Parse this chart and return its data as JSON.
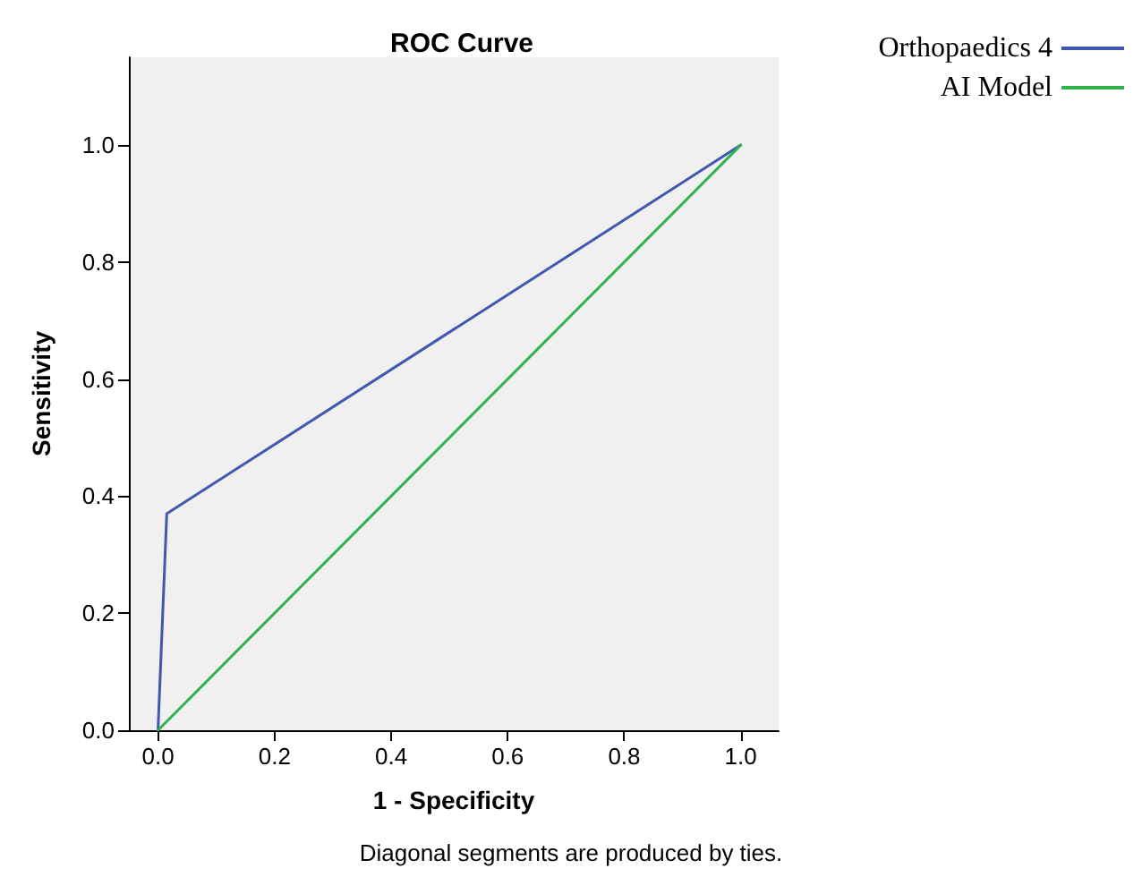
{
  "chart_data": {
    "type": "line",
    "title": "ROC Curve",
    "xlabel": "1 - Specificity",
    "ylabel": "Sensitivity",
    "annotations": [
      "Diagonal segments are produced by ties."
    ],
    "series": [
      {
        "name": "Orthopaedics 4",
        "color": "#4058b0",
        "x": [
          0,
          0.015,
          1
        ],
        "values": [
          0,
          0.37,
          1
        ]
      },
      {
        "name": "AI Model",
        "color": "#2fb34a",
        "x": [
          0,
          1
        ],
        "values": [
          0,
          1
        ]
      }
    ],
    "xlim": [
      -0.05,
      1.065
    ],
    "ylim": [
      0,
      1.15
    ],
    "xticks": [
      {
        "value": 0,
        "label": "0.0"
      },
      {
        "value": 0.2,
        "label": "0.2"
      },
      {
        "value": 0.4,
        "label": "0.4"
      },
      {
        "value": 0.6,
        "label": "0.6"
      },
      {
        "value": 0.8,
        "label": "0.8"
      },
      {
        "value": 1,
        "label": "1.0"
      }
    ],
    "yticks": [
      {
        "value": 0,
        "label": "0.0"
      },
      {
        "value": 0.2,
        "label": "0.2"
      },
      {
        "value": 0.4,
        "label": "0.4"
      },
      {
        "value": 0.6,
        "label": "0.6"
      },
      {
        "value": 0.8,
        "label": "0.8"
      },
      {
        "value": 1,
        "label": "1.0"
      }
    ],
    "grid": false,
    "legend": "top right",
    "marker": "none",
    "line_style": "solid"
  }
}
